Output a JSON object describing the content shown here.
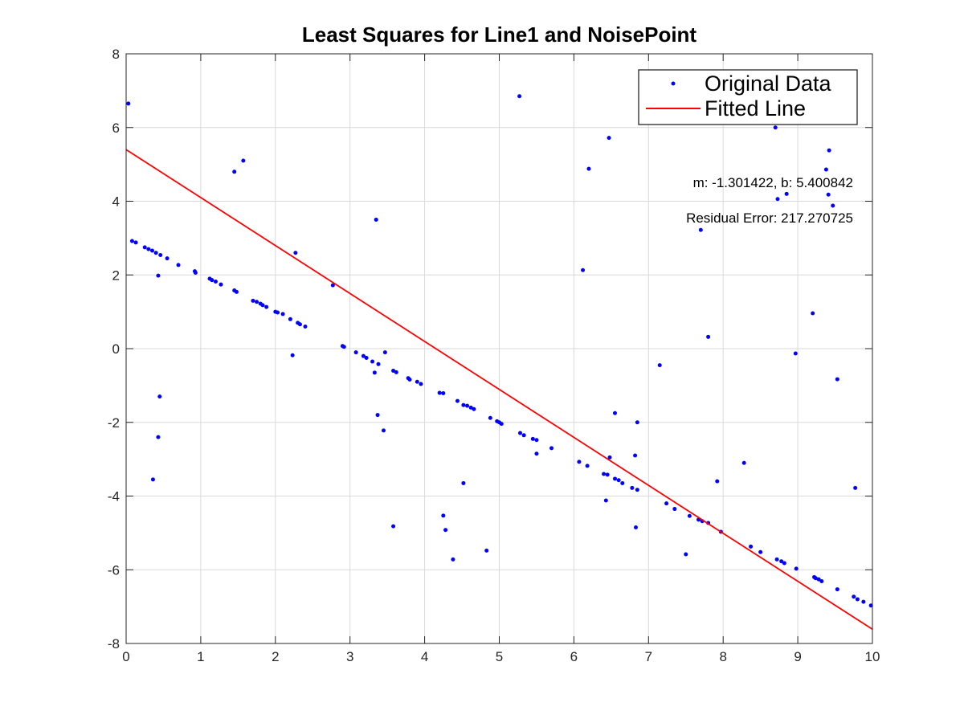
{
  "chart_data": {
    "type": "scatter",
    "title": "Least Squares for Line1 and NoisePoint",
    "xlabel": "",
    "ylabel": "",
    "xlim": [
      0,
      10
    ],
    "ylim": [
      -8,
      8
    ],
    "xticks": [
      0,
      1,
      2,
      3,
      4,
      5,
      6,
      7,
      8,
      9,
      10
    ],
    "yticks": [
      -8,
      -6,
      -4,
      -2,
      0,
      2,
      4,
      6,
      8
    ],
    "grid": true,
    "legend_position": "top-right",
    "annotations": [
      "m: -1.301422, b: 5.400842",
      "Residual Error: 217.270725"
    ],
    "series": [
      {
        "name": "Original Data",
        "type": "scatter",
        "color": "#0000ff",
        "points": [
          [
            0.03,
            6.65
          ],
          [
            0.08,
            2.92
          ],
          [
            0.13,
            2.88
          ],
          [
            0.25,
            2.75
          ],
          [
            0.3,
            2.7
          ],
          [
            0.35,
            2.66
          ],
          [
            0.4,
            2.6
          ],
          [
            0.46,
            2.54
          ],
          [
            0.55,
            2.45
          ],
          [
            0.7,
            2.27
          ],
          [
            0.92,
            2.1
          ],
          [
            0.93,
            2.06
          ],
          [
            1.12,
            1.9
          ],
          [
            1.15,
            1.86
          ],
          [
            1.2,
            1.82
          ],
          [
            1.27,
            1.74
          ],
          [
            1.45,
            1.58
          ],
          [
            1.48,
            1.54
          ],
          [
            1.7,
            1.3
          ],
          [
            1.75,
            1.27
          ],
          [
            1.8,
            1.22
          ],
          [
            1.83,
            1.18
          ],
          [
            1.88,
            1.13
          ],
          [
            2.0,
            1.0
          ],
          [
            2.03,
            0.98
          ],
          [
            2.1,
            0.94
          ],
          [
            2.2,
            0.8
          ],
          [
            2.3,
            0.7
          ],
          [
            2.33,
            0.66
          ],
          [
            2.4,
            0.6
          ],
          [
            2.9,
            0.07
          ],
          [
            2.92,
            0.05
          ],
          [
            3.08,
            -0.1
          ],
          [
            3.18,
            -0.2
          ],
          [
            3.22,
            -0.25
          ],
          [
            3.3,
            -0.35
          ],
          [
            3.38,
            -0.42
          ],
          [
            3.58,
            -0.6
          ],
          [
            3.62,
            -0.64
          ],
          [
            3.78,
            -0.8
          ],
          [
            3.8,
            -0.84
          ],
          [
            3.9,
            -0.9
          ],
          [
            3.95,
            -0.96
          ],
          [
            4.2,
            -1.2
          ],
          [
            4.25,
            -1.21
          ],
          [
            4.44,
            -1.42
          ],
          [
            4.52,
            -1.53
          ],
          [
            4.57,
            -1.55
          ],
          [
            4.62,
            -1.6
          ],
          [
            4.66,
            -1.64
          ],
          [
            4.88,
            -1.88
          ],
          [
            4.97,
            -1.97
          ],
          [
            5.0,
            -2.0
          ],
          [
            5.03,
            -2.04
          ],
          [
            5.28,
            -2.29
          ],
          [
            5.33,
            -2.35
          ],
          [
            5.45,
            -2.45
          ],
          [
            5.5,
            -2.48
          ],
          [
            5.7,
            -2.7
          ],
          [
            6.07,
            -3.07
          ],
          [
            6.18,
            -3.18
          ],
          [
            6.4,
            -3.4
          ],
          [
            6.45,
            -3.42
          ],
          [
            6.55,
            -3.53
          ],
          [
            6.6,
            -3.57
          ],
          [
            6.65,
            -3.65
          ],
          [
            6.78,
            -3.78
          ],
          [
            6.85,
            -3.83
          ],
          [
            7.24,
            -4.2
          ],
          [
            7.35,
            -4.35
          ],
          [
            7.55,
            -4.54
          ],
          [
            7.67,
            -4.64
          ],
          [
            7.72,
            -4.68
          ],
          [
            7.8,
            -4.73
          ],
          [
            7.97,
            -4.97
          ],
          [
            8.37,
            -5.37
          ],
          [
            8.5,
            -5.52
          ],
          [
            8.72,
            -5.72
          ],
          [
            8.78,
            -5.77
          ],
          [
            8.82,
            -5.82
          ],
          [
            8.98,
            -5.97
          ],
          [
            9.22,
            -6.2
          ],
          [
            9.24,
            -6.23
          ],
          [
            9.28,
            -6.26
          ],
          [
            9.32,
            -6.31
          ],
          [
            9.53,
            -6.53
          ],
          [
            9.75,
            -6.73
          ],
          [
            9.8,
            -6.8
          ],
          [
            9.88,
            -6.87
          ],
          [
            9.98,
            -6.97
          ],
          [
            0.36,
            -3.55
          ],
          [
            0.43,
            1.98
          ],
          [
            0.43,
            -2.4
          ],
          [
            0.45,
            -1.3
          ],
          [
            1.45,
            4.8
          ],
          [
            1.57,
            5.1
          ],
          [
            2.23,
            -0.18
          ],
          [
            2.27,
            2.6
          ],
          [
            2.77,
            1.72
          ],
          [
            3.33,
            -0.65
          ],
          [
            3.35,
            3.5
          ],
          [
            3.37,
            -1.8
          ],
          [
            3.45,
            -2.22
          ],
          [
            3.47,
            -0.1
          ],
          [
            3.58,
            -4.82
          ],
          [
            4.25,
            -4.53
          ],
          [
            4.28,
            -4.92
          ],
          [
            4.38,
            -5.72
          ],
          [
            4.52,
            -3.65
          ],
          [
            4.83,
            -5.48
          ],
          [
            5.27,
            6.85
          ],
          [
            5.5,
            -2.85
          ],
          [
            6.12,
            2.13
          ],
          [
            6.2,
            4.88
          ],
          [
            6.43,
            -4.12
          ],
          [
            6.47,
            5.72
          ],
          [
            6.48,
            -2.95
          ],
          [
            6.55,
            -1.75
          ],
          [
            6.82,
            -2.9
          ],
          [
            6.83,
            -4.85
          ],
          [
            6.85,
            -2.0
          ],
          [
            7.15,
            -0.45
          ],
          [
            7.5,
            -5.58
          ],
          [
            7.7,
            3.22
          ],
          [
            7.8,
            0.32
          ],
          [
            7.92,
            -3.6
          ],
          [
            8.28,
            -3.1
          ],
          [
            8.7,
            6.0
          ],
          [
            8.73,
            4.06
          ],
          [
            8.85,
            4.2
          ],
          [
            8.97,
            -0.13
          ],
          [
            9.2,
            0.96
          ],
          [
            9.38,
            4.86
          ],
          [
            9.41,
            4.18
          ],
          [
            9.42,
            5.38
          ],
          [
            9.47,
            3.88
          ],
          [
            9.53,
            -0.83
          ],
          [
            9.77,
            -3.78
          ]
        ]
      },
      {
        "name": "Fitted Line",
        "type": "line",
        "color": "#ff0000",
        "slope": -1.301422,
        "intercept": 5.400842
      }
    ]
  }
}
